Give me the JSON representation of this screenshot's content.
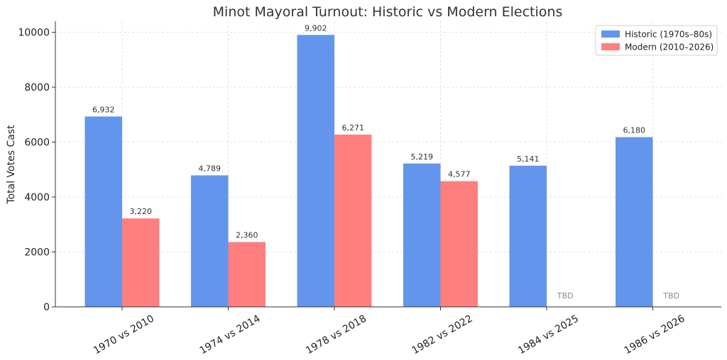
{
  "chart_data": {
    "type": "bar",
    "title": "Minot Mayoral Turnout: Historic vs Modern Elections",
    "xlabel": "",
    "ylabel": "Total Votes Cast",
    "ylim": [
      0,
      10400
    ],
    "yticks": [
      0,
      2000,
      4000,
      6000,
      8000,
      10000
    ],
    "grid": true,
    "legend_position": "top-right",
    "categories": [
      "1970 vs 2010",
      "1974 vs 2014",
      "1978 vs 2018",
      "1982 vs 2022",
      "1984 vs 2025",
      "1986 vs 2026"
    ],
    "series": [
      {
        "name": "Historic (1970s–80s)",
        "color": "#6495ED",
        "values": [
          6932,
          4789,
          9902,
          5219,
          5141,
          6180
        ],
        "labels": [
          "6,932",
          "4,789",
          "9,902",
          "5,219",
          "5,141",
          "6,180"
        ]
      },
      {
        "name": "Modern (2010–2026)",
        "color": "#FF7F7F",
        "values": [
          3220,
          2360,
          6271,
          4577,
          null,
          null
        ],
        "labels": [
          "3,220",
          "2,360",
          "6,271",
          "4,577",
          "TBD",
          "TBD"
        ]
      }
    ]
  }
}
